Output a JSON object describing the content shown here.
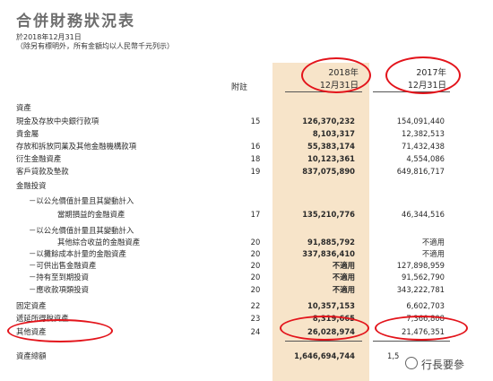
{
  "title": "合併財務狀況表",
  "date_line": "於2018年12月31日",
  "unit_line": "（除另有標明外，所有金額均以人民幣千元列示）",
  "header": {
    "note": "附註",
    "y2018_year": "2018年",
    "y2018_date": "12月31日",
    "y2017_year": "2017年",
    "y2017_date": "12月31日"
  },
  "rows": [
    {
      "label": "資產",
      "note": "",
      "v2018": "",
      "v2017": ""
    },
    {
      "label": "現金及存放中央銀行款項",
      "note": "15",
      "v2018": "126,370,232",
      "v2017": "154,091,440"
    },
    {
      "label": "貴金屬",
      "note": "",
      "v2018": "8,103,317",
      "v2017": "12,382,513"
    },
    {
      "label": "存放和拆放同業及其他金融機構款項",
      "note": "16",
      "v2018": "55,383,174",
      "v2017": "71,432,438"
    },
    {
      "label": "衍生金融資產",
      "note": "18",
      "v2018": "10,123,361",
      "v2017": "4,554,086"
    },
    {
      "label": "客戶貸款及墊款",
      "note": "19",
      "v2018": "837,075,890",
      "v2017": "649,816,717"
    },
    {
      "label": "金融投資",
      "note": "",
      "v2018": "",
      "v2017": ""
    },
    {
      "label": "－以公允價值計量且其變動計入",
      "note": "",
      "v2018": "",
      "v2017": ""
    },
    {
      "label": "當期損益的金融資產",
      "note": "17",
      "v2018": "135,210,776",
      "v2017": "46,344,516"
    },
    {
      "label": "－以公允價值計量且其變動計入",
      "note": "",
      "v2018": "",
      "v2017": ""
    },
    {
      "label": "其他綜合收益的金融資產",
      "note": "20",
      "v2018": "91,885,792",
      "v2017": "不適用"
    },
    {
      "label": "－以攤餘成本計量的金融資產",
      "note": "20",
      "v2018": "337,836,410",
      "v2017": "不適用"
    },
    {
      "label": "－可供出售金融資產",
      "note": "20",
      "v2018": "不適用",
      "v2017": "127,898,959"
    },
    {
      "label": "－持有至到期投資",
      "note": "20",
      "v2018": "不適用",
      "v2017": "91,562,790"
    },
    {
      "label": "－應收款項類投資",
      "note": "20",
      "v2018": "不適用",
      "v2017": "343,222,781"
    },
    {
      "label": "固定資產",
      "note": "22",
      "v2018": "10,357,153",
      "v2017": "6,602,703"
    },
    {
      "label": "遞延所得稅資產",
      "note": "23",
      "v2018": "8,319,665",
      "v2017": "7,366,808"
    },
    {
      "label": "其他資產",
      "note": "24",
      "v2018": "26,028,974",
      "v2017": "21,476,351"
    }
  ],
  "total": {
    "label": "資產總額",
    "v2018": "1,646,694,744",
    "v2017": "1,5"
  },
  "watermark": "行長要參"
}
